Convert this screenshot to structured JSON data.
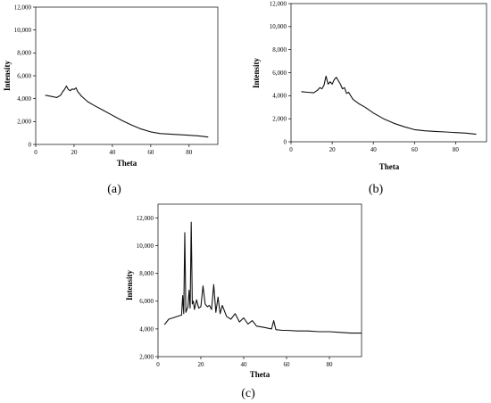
{
  "chart_data": [
    {
      "type": "line",
      "panel_label": "(a)",
      "xlabel": "Theta",
      "ylabel": "Intensity",
      "xlim": [
        0,
        95
      ],
      "ylim": [
        0,
        12000
      ],
      "x_ticks": [
        0,
        20,
        40,
        60,
        80
      ],
      "y_ticks": [
        0,
        2000,
        4000,
        6000,
        8000,
        10000,
        12000
      ],
      "x_tick_labels": [
        "0",
        "20",
        "40",
        "60",
        "80"
      ],
      "y_tick_labels": [
        "0",
        "2,000",
        "4,000",
        "6,000",
        "8,000",
        "10,000",
        "12,000"
      ],
      "line_color": "#111111",
      "grid": false,
      "series": [
        {
          "x": [
            5,
            8,
            11,
            13,
            14,
            15,
            16,
            17,
            18,
            19,
            20,
            21,
            22,
            23,
            24,
            25,
            27,
            30,
            35,
            40,
            45,
            50,
            55,
            60,
            65,
            70,
            75,
            80,
            85,
            90
          ],
          "y": [
            4300,
            4200,
            4100,
            4300,
            4600,
            4800,
            5100,
            4800,
            4700,
            4850,
            4800,
            4950,
            4600,
            4400,
            4200,
            4050,
            3750,
            3450,
            3000,
            2550,
            2100,
            1700,
            1350,
            1100,
            950,
            900,
            850,
            800,
            750,
            650
          ]
        }
      ]
    },
    {
      "type": "line",
      "panel_label": "(b)",
      "xlabel": "Theta",
      "ylabel": "Intensity",
      "xlim": [
        0,
        95
      ],
      "ylim": [
        0,
        12000
      ],
      "x_ticks": [
        0,
        20,
        40,
        60,
        80
      ],
      "y_ticks": [
        0,
        2000,
        4000,
        6000,
        8000,
        10000,
        12000
      ],
      "x_tick_labels": [
        "0",
        "20",
        "40",
        "60",
        "80"
      ],
      "y_tick_labels": [
        "0",
        "2,000",
        "4,000",
        "6,000",
        "8,000",
        "10,000",
        "12,000"
      ],
      "line_color": "#111111",
      "grid": false,
      "series": [
        {
          "x": [
            5,
            8,
            11,
            13,
            14,
            15,
            16,
            17,
            18,
            19,
            20,
            21,
            22,
            23,
            24,
            25,
            26,
            27,
            28,
            30,
            33,
            36,
            40,
            45,
            50,
            55,
            60,
            65,
            70,
            75,
            80,
            85,
            90
          ],
          "y": [
            4350,
            4300,
            4250,
            4500,
            4700,
            4600,
            4900,
            5700,
            5000,
            5200,
            5000,
            5400,
            5600,
            5300,
            5000,
            4600,
            4700,
            4200,
            4300,
            3700,
            3300,
            3000,
            2500,
            2000,
            1600,
            1300,
            1050,
            950,
            900,
            850,
            800,
            750,
            650
          ]
        }
      ]
    },
    {
      "type": "line",
      "panel_label": "(c)",
      "xlabel": "Theta",
      "ylabel": "Intensity",
      "xlim": [
        0,
        95
      ],
      "ylim": [
        2000,
        13000
      ],
      "x_ticks": [
        0,
        20,
        40,
        60,
        80
      ],
      "y_ticks": [
        2000,
        4000,
        6000,
        8000,
        10000,
        12000
      ],
      "x_tick_labels": [
        "0",
        "20",
        "40",
        "60",
        "80"
      ],
      "y_tick_labels": [
        "2,000",
        "4,000",
        "6,000",
        "8,000",
        "10,000",
        "12,000"
      ],
      "line_color": "#111111",
      "grid": false,
      "series": [
        {
          "x": [
            3,
            5,
            7,
            9,
            10,
            11,
            11.5,
            12,
            12.5,
            13,
            13.5,
            14,
            14.5,
            15,
            15.5,
            16,
            16.5,
            17,
            18,
            19,
            20,
            21,
            22,
            23,
            24,
            25,
            26,
            27,
            28,
            29,
            30,
            32,
            34,
            36,
            38,
            40,
            42,
            44,
            46,
            48,
            50,
            53,
            54,
            55,
            58,
            60,
            65,
            70,
            75,
            80,
            85,
            90,
            95
          ],
          "y": [
            4300,
            4700,
            4800,
            4900,
            4950,
            5000,
            6400,
            5100,
            10950,
            5200,
            5400,
            5600,
            6800,
            5500,
            11700,
            5800,
            6000,
            5400,
            6100,
            5500,
            5600,
            7100,
            5800,
            5600,
            5700,
            5400,
            7200,
            5200,
            6300,
            5100,
            5700,
            4900,
            4700,
            5100,
            4500,
            4800,
            4350,
            4600,
            4200,
            4150,
            4100,
            4000,
            4600,
            3950,
            3900,
            3900,
            3850,
            3850,
            3800,
            3800,
            3750,
            3700,
            3700
          ]
        }
      ]
    }
  ]
}
